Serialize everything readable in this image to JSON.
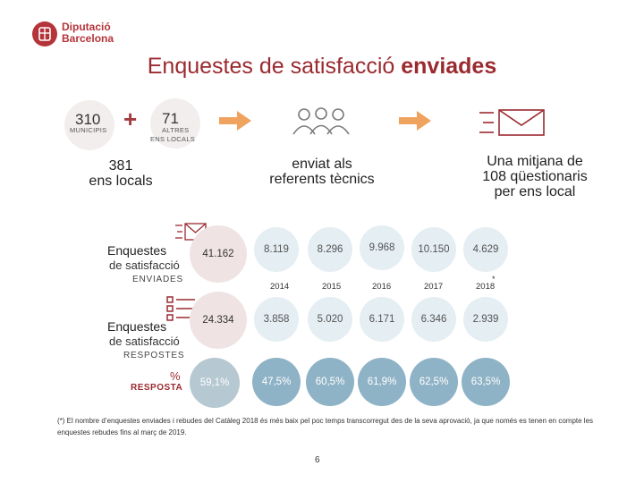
{
  "brand": {
    "line1": "Diputació",
    "line2": "Barcelona",
    "color": "#b5343a"
  },
  "title": {
    "normal": "Enquestes de satisfacció ",
    "bold": "enviades"
  },
  "top": {
    "municipis_value": "310",
    "municipis_label": "MUNICIPIS",
    "plus": "+",
    "altres_value": "71",
    "altres_label_1": "ALTRES",
    "altres_label_2": "ENS LOCALS",
    "total_line1": "381",
    "total_line2": "ens locals",
    "referents_line1": "enviat als",
    "referents_line2": "referents tècnics",
    "mitjana_line1": "Una mitjana de",
    "mitjana_line2": "108 qüestionaris",
    "mitjana_line3": "per ens local",
    "arrow_color": "#f0a25f"
  },
  "enviades": {
    "title": "Enquestes",
    "sub": "de satisfacció",
    "caps": "ENVIADES",
    "total": "41.162"
  },
  "respostes": {
    "title": "Enquestes",
    "sub": "de satisfacció",
    "caps": "RESPOSTES",
    "total": "24.334"
  },
  "resposta": {
    "symbol": "%",
    "label": "RESPOSTA",
    "total": "59,1%"
  },
  "years": [
    {
      "year": "2014",
      "sent": "8.119",
      "answered": "3.858",
      "rate": "47,5%"
    },
    {
      "year": "2015",
      "sent": "8.296",
      "answered": "5.020",
      "rate": "60,5%"
    },
    {
      "year": "2016",
      "sent": "9.968",
      "answered": "6.171",
      "rate": "61,9%"
    },
    {
      "year": "2017",
      "sent": "10.150",
      "answered": "6.346",
      "rate": "62,5%"
    },
    {
      "year": "2018",
      "sent": "4.629",
      "answered": "2.939",
      "rate": "63,5%"
    }
  ],
  "footnote": "(*) El nombre d’enquestes enviades i rebudes del Catàleg 2018 és més baix pel poc temps transcorregut des de la seva aprovació, ja que només es tenen en compte les enquestes rebudes fins al març de 2019.",
  "page_number": "6",
  "colors": {
    "accent": "#9b2a30",
    "rate_circle": "#8fb3c6",
    "rate_total": "#b6c8d2"
  }
}
